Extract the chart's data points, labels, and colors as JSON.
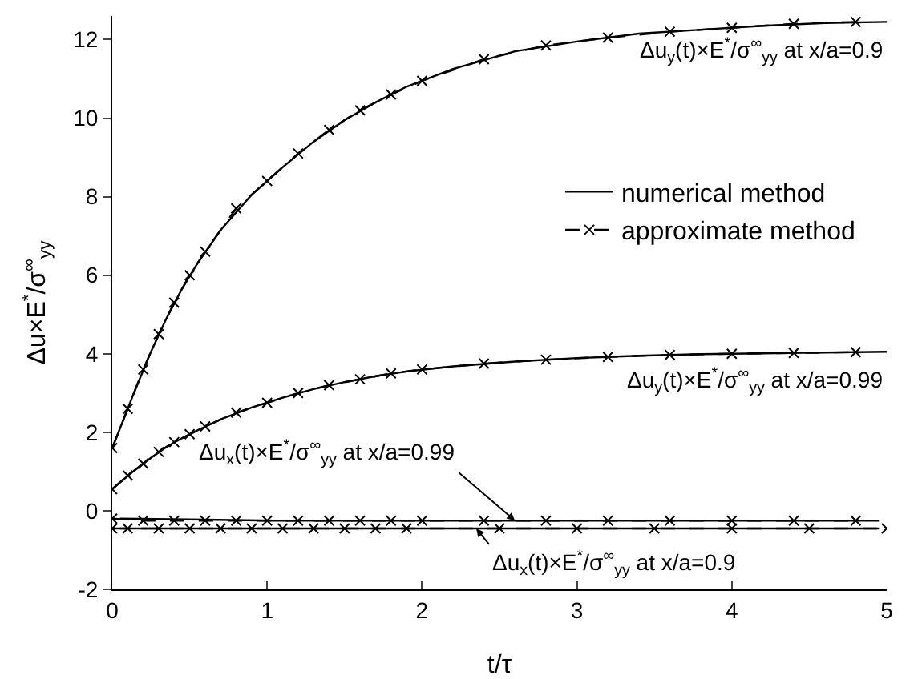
{
  "chart_data": {
    "type": "line",
    "xlabel": "t/τ",
    "ylabel": "Δu×E$^{*}$/σ$^{∞}$$_{yy}$",
    "xlim": [
      0,
      5
    ],
    "xticks": [
      0,
      1,
      2,
      3,
      4,
      5
    ],
    "ylim": [
      -2,
      12.6
    ],
    "yticks": [
      -2,
      0,
      2,
      4,
      6,
      8,
      10,
      12
    ],
    "grid": false,
    "legend": "right",
    "series": [
      {
        "name": "numerical method",
        "color": "#000000",
        "line_style": "solid",
        "marker": "none",
        "x": [
          0,
          0.05,
          0.15,
          0.25,
          0.35,
          0.45,
          0.55,
          0.7,
          0.9,
          1.1,
          1.3,
          1.5,
          1.7,
          1.9,
          2.2,
          2.6,
          3.0,
          3.4,
          3.8,
          4.2,
          4.6,
          5.0
        ],
        "values": [
          1.6,
          2.1,
          3.1,
          4.05,
          4.9,
          5.65,
          6.3,
          7.15,
          8.05,
          8.75,
          9.4,
          9.95,
          10.4,
          10.8,
          11.25,
          11.7,
          11.95,
          12.15,
          12.25,
          12.35,
          12.42,
          12.45
        ]
      },
      {
        "color": "#000000",
        "line_style": "solid",
        "marker": "none",
        "x": [
          0,
          0.05,
          0.15,
          0.25,
          0.35,
          0.45,
          0.55,
          0.7,
          0.9,
          1.1,
          1.3,
          1.5,
          1.7,
          1.9,
          2.2,
          2.6,
          3.0,
          3.4,
          3.8,
          4.2,
          4.6,
          5.0
        ],
        "values": [
          0.55,
          0.72,
          1.05,
          1.35,
          1.63,
          1.85,
          2.05,
          2.33,
          2.63,
          2.88,
          3.1,
          3.28,
          3.43,
          3.55,
          3.68,
          3.8,
          3.89,
          3.95,
          3.99,
          4.01,
          4.03,
          4.05
        ]
      },
      {
        "color": "#000000",
        "line_style": "solid",
        "marker": "none",
        "x": [
          0.05,
          1.05,
          2.05,
          3.05,
          4.05,
          4.95
        ],
        "values": [
          -0.2,
          -0.25,
          -0.25,
          -0.25,
          -0.25,
          -0.25
        ]
      },
      {
        "color": "#000000",
        "line_style": "solid",
        "marker": "none",
        "x": [
          0.05,
          1.05,
          2.05,
          3.05,
          4.05,
          4.95
        ],
        "values": [
          -0.45,
          -0.45,
          -0.45,
          -0.45,
          -0.45,
          -0.45
        ]
      },
      {
        "name": "approximate method",
        "color": "#000000",
        "line_style": "dashed",
        "marker": "cross",
        "x": [
          0,
          0.1,
          0.2,
          0.3,
          0.4,
          0.5,
          0.6,
          0.8,
          1.0,
          1.2,
          1.4,
          1.6,
          1.8,
          2.0,
          2.4,
          2.8,
          3.2,
          3.6,
          4.0,
          4.4,
          4.8
        ],
        "values": [
          1.6,
          2.6,
          3.6,
          4.5,
          5.3,
          6.0,
          6.6,
          7.7,
          8.4,
          9.1,
          9.7,
          10.2,
          10.6,
          10.95,
          11.5,
          11.85,
          12.05,
          12.2,
          12.3,
          12.4,
          12.45
        ]
      },
      {
        "color": "#000000",
        "line_style": "dashed",
        "marker": "cross",
        "x": [
          0,
          0.1,
          0.2,
          0.3,
          0.4,
          0.5,
          0.6,
          0.8,
          1.0,
          1.2,
          1.4,
          1.6,
          1.8,
          2.0,
          2.4,
          2.8,
          3.2,
          3.6,
          4.0,
          4.4,
          4.8
        ],
        "values": [
          0.55,
          0.9,
          1.2,
          1.5,
          1.75,
          1.95,
          2.15,
          2.5,
          2.75,
          3.0,
          3.2,
          3.35,
          3.5,
          3.6,
          3.75,
          3.85,
          3.92,
          3.97,
          4.0,
          4.02,
          4.04
        ]
      },
      {
        "color": "#000000",
        "line_style": "dashed",
        "marker": "cross",
        "x": [
          0,
          0.2,
          0.4,
          0.6,
          0.8,
          1.0,
          1.2,
          1.4,
          1.6,
          1.8,
          2.0,
          2.4,
          2.8,
          3.2,
          3.6,
          4.0,
          4.4,
          4.8
        ],
        "values": [
          -0.2,
          -0.25,
          -0.25,
          -0.25,
          -0.25,
          -0.25,
          -0.25,
          -0.25,
          -0.25,
          -0.25,
          -0.25,
          -0.25,
          -0.25,
          -0.25,
          -0.25,
          -0.25,
          -0.25,
          -0.25
        ]
      },
      {
        "color": "#000000",
        "line_style": "dashed",
        "marker": "cross",
        "x": [
          0,
          0.1,
          0.3,
          0.5,
          0.7,
          0.9,
          1.1,
          1.3,
          1.5,
          1.7,
          1.9,
          2.5,
          3.0,
          3.5,
          4.0,
          4.5,
          5.0
        ],
        "values": [
          -0.45,
          -0.45,
          -0.45,
          -0.45,
          -0.45,
          -0.45,
          -0.45,
          -0.45,
          -0.45,
          -0.45,
          -0.45,
          -0.45,
          -0.45,
          -0.45,
          -0.45,
          -0.45,
          -0.45
        ]
      }
    ],
    "annotations": [
      {
        "text": "Δu$_{y}$(t)×E$^{*}$/σ$^{∞}$$_{yy}$ at x/a=0.9",
        "x": 5,
        "y": 12.45
      },
      {
        "text": "Δu$_{y}$(t)×E$^{*}$/σ$^{∞}$$_{yy}$ at x/a=0.99",
        "x": 5,
        "y": 4.05
      },
      {
        "text": "Δu$_{x}$(t)×E$^{*}$/σ$^{∞}$$_{yy}$ at x/a=0.99",
        "x": 2.6,
        "y": -0.25
      },
      {
        "text": "Δu$_{x}$(t)×E$^{*}$/σ$^{∞}$$_{yy}$ at x/a=0.9",
        "x": 2.35,
        "y": -0.45
      }
    ]
  }
}
